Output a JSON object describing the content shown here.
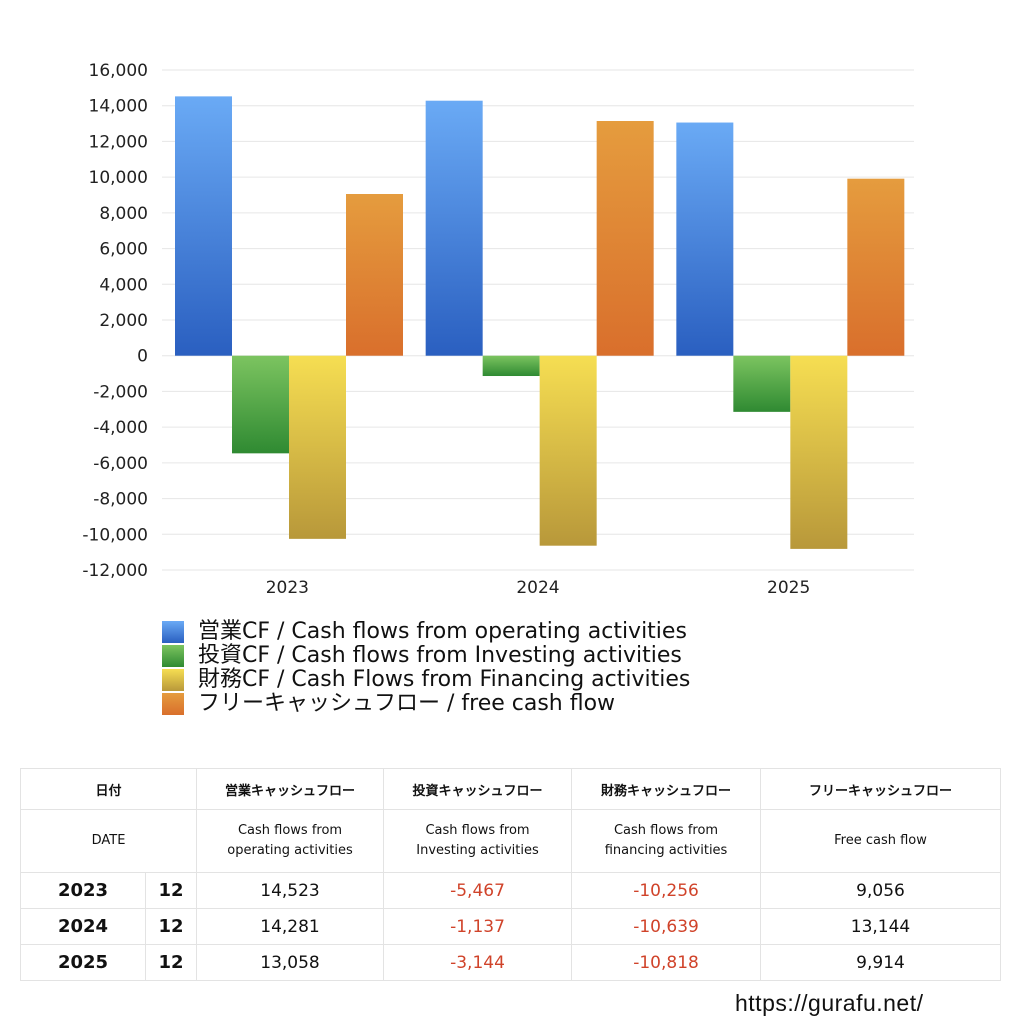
{
  "chart_data": {
    "type": "bar",
    "categories": [
      "2023",
      "2024",
      "2025"
    ],
    "series": [
      {
        "name": "営業CF / Cash flows from operating activities",
        "values": [
          14523,
          14281,
          13058
        ],
        "color": "#4a86e0"
      },
      {
        "name": "投資CF / Cash flows from Investing activities",
        "values": [
          -5467,
          -1137,
          -3144
        ],
        "color": "#4ea046"
      },
      {
        "name": "財務CF / Cash Flows from Financing activities",
        "values": [
          -10256,
          -10639,
          -10818
        ],
        "color": "#e6c948"
      },
      {
        "name": "フリーキャッシュフロー / free cash flow",
        "values": [
          9056,
          13144,
          9914
        ],
        "color": "#e08436"
      }
    ],
    "ylim": [
      -12000,
      16000
    ],
    "yticks": [
      "16,000",
      "14,000",
      "12,000",
      "10,000",
      "8,000",
      "6,000",
      "4,000",
      "2,000",
      "0",
      "-2,000",
      "-4,000",
      "-6,000",
      "-8,000",
      "-10,000",
      "-12,000"
    ],
    "grid": true,
    "legend_position": "bottom"
  },
  "table": {
    "header_jp": {
      "date": "日付",
      "op": "営業キャッシュフロー",
      "inv": "投資キャッシュフロー",
      "fin": "財務キャッシュフロー",
      "fcf": "フリーキャッシュフロー"
    },
    "header_en": {
      "date": "DATE",
      "op": [
        "Cash flows from",
        "operating activities"
      ],
      "inv": [
        "Cash flows from",
        "Investing activities"
      ],
      "fin": [
        "Cash flows from",
        "financing activities"
      ],
      "fcf": "Free cash flow"
    },
    "rows": [
      {
        "year": "2023",
        "month": "12",
        "op": "14,523",
        "inv": "-5,467",
        "fin": "-10,256",
        "fcf": "9,056"
      },
      {
        "year": "2024",
        "month": "12",
        "op": "14,281",
        "inv": "-1,137",
        "fin": "-10,639",
        "fcf": "13,144"
      },
      {
        "year": "2025",
        "month": "12",
        "op": "13,058",
        "inv": "-3,144",
        "fin": "-10,818",
        "fcf": "9,914"
      }
    ]
  },
  "url": "https://gurafu.net/"
}
